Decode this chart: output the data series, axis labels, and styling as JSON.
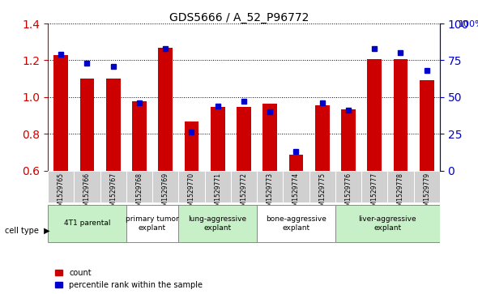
{
  "title": "GDS5666 / A_52_P96772",
  "samples": [
    "GSM1529765",
    "GSM1529766",
    "GSM1529767",
    "GSM1529768",
    "GSM1529769",
    "GSM1529770",
    "GSM1529771",
    "GSM1529772",
    "GSM1529773",
    "GSM1529774",
    "GSM1529775",
    "GSM1529776",
    "GSM1529777",
    "GSM1529778",
    "GSM1529779"
  ],
  "counts": [
    1.23,
    1.1,
    1.1,
    0.975,
    1.27,
    0.865,
    0.945,
    0.945,
    0.965,
    0.685,
    0.955,
    0.935,
    1.205,
    1.205,
    1.09
  ],
  "percentiles": [
    79,
    73,
    71,
    46,
    83,
    26,
    44,
    47,
    40,
    13,
    46,
    41,
    83,
    80,
    68
  ],
  "ylim_left": [
    0.6,
    1.4
  ],
  "ylim_right": [
    0,
    100
  ],
  "yticks_left": [
    0.6,
    0.8,
    1.0,
    1.2,
    1.4
  ],
  "yticks_right": [
    0,
    25,
    50,
    75,
    100
  ],
  "bar_color": "#cc0000",
  "dot_color": "#0000cc",
  "grid_color": "#000000",
  "cell_types": [
    {
      "label": "4T1 parental",
      "start": 0,
      "end": 3,
      "color": "#c8f0c8"
    },
    {
      "label": "primary tumor\nexplant",
      "start": 3,
      "end": 5,
      "color": "#ffffff"
    },
    {
      "label": "lung-aggressive\nexplant",
      "start": 5,
      "end": 8,
      "color": "#c8f0c8"
    },
    {
      "label": "bone-aggressive\nexplant",
      "start": 8,
      "end": 11,
      "color": "#ffffff"
    },
    {
      "label": "liver-aggressive\nexplant",
      "start": 11,
      "end": 15,
      "color": "#c8f0c8"
    }
  ],
  "cell_type_label": "cell type",
  "legend_count_label": "count",
  "legend_percentile_label": "percentile rank within the sample",
  "bg_color": "#ffffff",
  "sample_bg_color": "#d0d0d0"
}
